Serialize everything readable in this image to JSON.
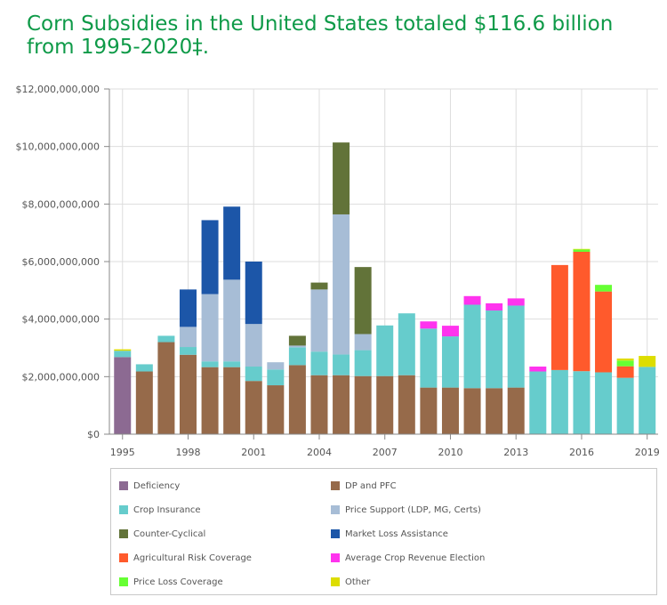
{
  "chart_data": {
    "type": "bar",
    "stacked": true,
    "title": "Corn Subsidies in the United States totaled $116.6 billion from 1995-2020‡.",
    "xlabel": "",
    "ylabel": "",
    "ylim": [
      0,
      12000000000
    ],
    "y_ticks": [
      0,
      2000000000,
      4000000000,
      6000000000,
      8000000000,
      10000000000,
      12000000000
    ],
    "y_tick_labels": [
      "$0",
      "$2,000,000,000",
      "$4,000,000,000",
      "$6,000,000,000",
      "$8,000,000,000",
      "$10,000,000,000",
      "$12,000,000,000"
    ],
    "x_tick_labels": [
      "1995",
      "1998",
      "2001",
      "2004",
      "2007",
      "2010",
      "2013",
      "2016",
      "2019"
    ],
    "grid": true,
    "legend_position": "bottom",
    "categories": [
      1995,
      1996,
      1997,
      1998,
      1999,
      2000,
      2001,
      2002,
      2003,
      2004,
      2005,
      2006,
      2007,
      2008,
      2009,
      2010,
      2011,
      2012,
      2013,
      2014,
      2015,
      2016,
      2017,
      2018,
      2019
    ],
    "series": [
      {
        "name": "Deficiency",
        "color": "#8c6a92",
        "values": [
          2680000000,
          0,
          0,
          0,
          0,
          0,
          0,
          0,
          0,
          0,
          0,
          0,
          0,
          0,
          0,
          0,
          0,
          0,
          0,
          0,
          0,
          0,
          0,
          0,
          0
        ]
      },
      {
        "name": "DP and PFC",
        "color": "#966a4a",
        "values": [
          0,
          2180000000,
          3200000000,
          2760000000,
          2330000000,
          2330000000,
          1850000000,
          1700000000,
          2400000000,
          2050000000,
          2050000000,
          2020000000,
          2020000000,
          2050000000,
          1620000000,
          1620000000,
          1600000000,
          1600000000,
          1620000000,
          0,
          0,
          0,
          0,
          0,
          0
        ]
      },
      {
        "name": "Crop Insurance",
        "color": "#66cccc",
        "values": [
          220000000,
          250000000,
          220000000,
          270000000,
          200000000,
          200000000,
          500000000,
          550000000,
          620000000,
          820000000,
          720000000,
          900000000,
          1760000000,
          2150000000,
          2050000000,
          1780000000,
          2900000000,
          2700000000,
          2850000000,
          2180000000,
          2230000000,
          2190000000,
          2150000000,
          1960000000,
          2340000000
        ]
      },
      {
        "name": "Price Support (LDP, MG, Certs)",
        "color": "#a7bdd6",
        "values": [
          0,
          0,
          0,
          700000000,
          2340000000,
          2840000000,
          1480000000,
          250000000,
          60000000,
          2160000000,
          4870000000,
          560000000,
          0,
          0,
          0,
          0,
          0,
          0,
          0,
          0,
          0,
          0,
          0,
          0,
          0
        ]
      },
      {
        "name": "Counter-Cyclical",
        "color": "#627339",
        "values": [
          0,
          0,
          0,
          0,
          0,
          0,
          0,
          0,
          340000000,
          240000000,
          2500000000,
          2330000000,
          0,
          0,
          0,
          0,
          0,
          0,
          0,
          0,
          0,
          0,
          0,
          0,
          0
        ]
      },
      {
        "name": "Market Loss Assistance",
        "color": "#1c56a8",
        "values": [
          0,
          0,
          0,
          1300000000,
          2570000000,
          2540000000,
          2170000000,
          0,
          0,
          0,
          0,
          0,
          0,
          0,
          0,
          0,
          0,
          0,
          0,
          0,
          0,
          0,
          0,
          0,
          0
        ]
      },
      {
        "name": "Agricultural Risk Coverage",
        "color": "#ff5a2c",
        "values": [
          0,
          0,
          0,
          0,
          0,
          0,
          0,
          0,
          0,
          0,
          0,
          0,
          0,
          0,
          0,
          0,
          0,
          0,
          0,
          0,
          3650000000,
          4150000000,
          2810000000,
          400000000,
          0
        ]
      },
      {
        "name": "Average Crop Revenue Election",
        "color": "#ff33ee",
        "values": [
          0,
          0,
          0,
          0,
          0,
          0,
          0,
          0,
          0,
          0,
          0,
          0,
          0,
          0,
          250000000,
          370000000,
          300000000,
          250000000,
          250000000,
          170000000,
          0,
          0,
          0,
          0,
          0
        ]
      },
      {
        "name": "Price Loss Coverage",
        "color": "#66ff33",
        "values": [
          0,
          0,
          0,
          0,
          0,
          0,
          0,
          0,
          0,
          0,
          0,
          0,
          0,
          0,
          0,
          0,
          0,
          0,
          0,
          0,
          0,
          80000000,
          230000000,
          200000000,
          0
        ]
      },
      {
        "name": "Other",
        "color": "#dddd00",
        "values": [
          50000000,
          0,
          0,
          0,
          0,
          0,
          0,
          0,
          0,
          0,
          0,
          0,
          0,
          0,
          0,
          0,
          0,
          0,
          0,
          0,
          0,
          20000000,
          0,
          70000000,
          380000000
        ]
      }
    ]
  }
}
